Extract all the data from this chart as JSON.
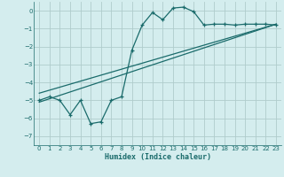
{
  "xlabel": "Humidex (Indice chaleur)",
  "background_color": "#d4edee",
  "grid_color": "#b0cccc",
  "line_color": "#1a6b6b",
  "xlim": [
    -0.5,
    23.5
  ],
  "ylim": [
    -7.5,
    0.5
  ],
  "xticks": [
    0,
    1,
    2,
    3,
    4,
    5,
    6,
    7,
    8,
    9,
    10,
    11,
    12,
    13,
    14,
    15,
    16,
    17,
    18,
    19,
    20,
    21,
    22,
    23
  ],
  "yticks": [
    0,
    -1,
    -2,
    -3,
    -4,
    -5,
    -6,
    -7
  ],
  "series1_x": [
    0,
    1,
    2,
    3,
    4,
    5,
    6,
    7,
    8,
    9,
    10,
    11,
    12,
    13,
    14,
    15,
    16,
    17,
    18,
    19,
    20,
    21,
    22,
    23
  ],
  "series1_y": [
    -5.0,
    -4.8,
    -5.0,
    -5.8,
    -5.0,
    -6.3,
    -6.2,
    -5.0,
    -4.8,
    -2.2,
    -0.8,
    -0.1,
    -0.5,
    0.15,
    0.2,
    -0.05,
    -0.8,
    -0.75,
    -0.75,
    -0.8,
    -0.75,
    -0.75,
    -0.75,
    -0.8
  ],
  "line1_x": [
    0,
    23
  ],
  "line1_y": [
    -5.1,
    -0.75
  ],
  "line2_x": [
    0,
    23
  ],
  "line2_y": [
    -4.6,
    -0.75
  ]
}
